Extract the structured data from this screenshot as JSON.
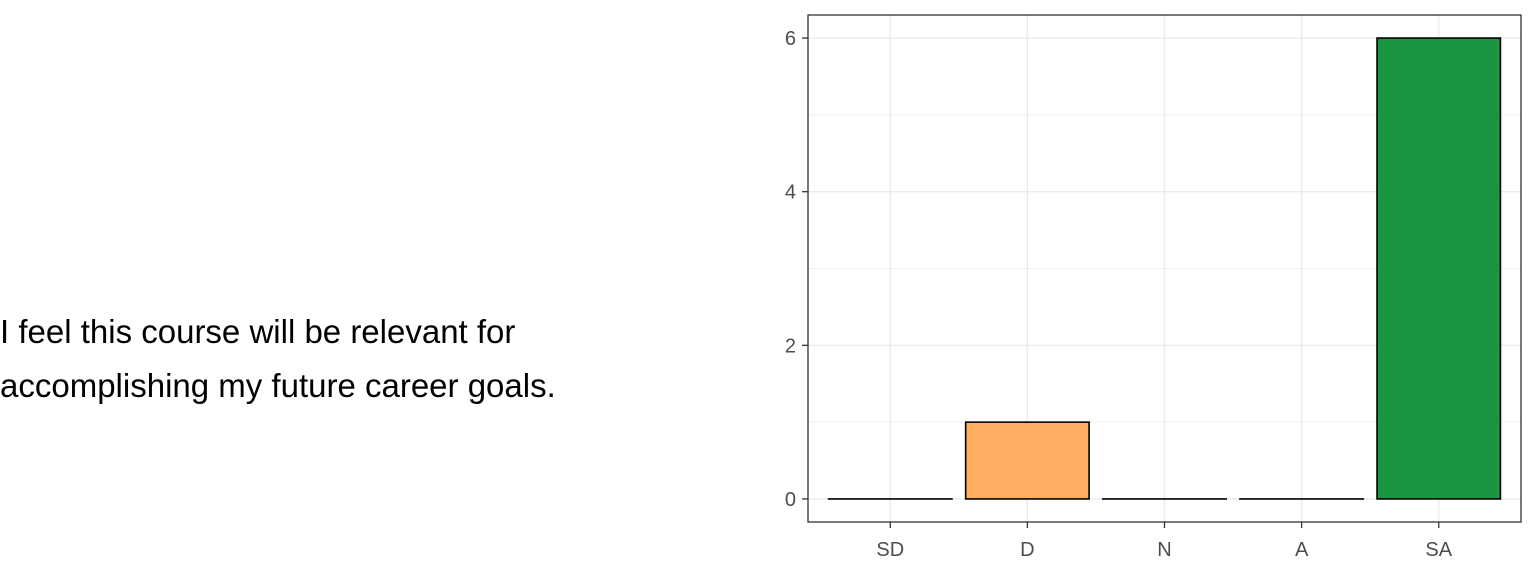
{
  "question": {
    "line1": "I feel this course will be relevant for",
    "line2": "accomplishing my future career goals."
  },
  "chart_data": {
    "type": "bar",
    "categories": [
      "SD",
      "D",
      "N",
      "A",
      "SA"
    ],
    "values": [
      0,
      1,
      0,
      0,
      6
    ],
    "colors": [
      "#d7191c",
      "#fdae61",
      "#ffffbf",
      "#a6d96a",
      "#1a9641"
    ],
    "ylim": [
      -0.3,
      6.3
    ],
    "yticks": [
      0,
      2,
      4,
      6
    ],
    "grid": true,
    "title": "",
    "xlabel": "",
    "ylabel": ""
  }
}
